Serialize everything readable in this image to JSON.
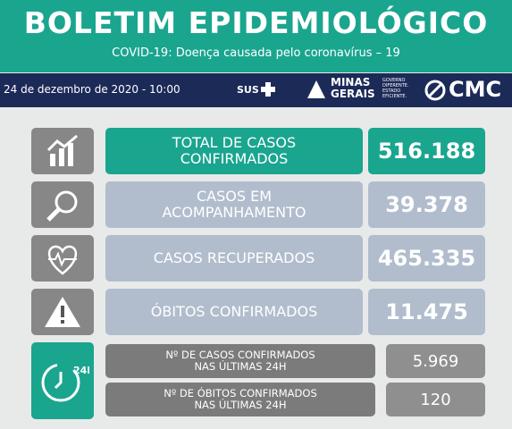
{
  "header": {
    "title": "BOLETIM EPIDEMIOLÓGICO",
    "subtitle": "COVID-19: Doença causada pelo coronavírus – 19"
  },
  "bar": {
    "date": "24 de dezembro de 2020 - 10:00",
    "logos": {
      "sus": "SUS",
      "state": [
        "MINAS",
        "GERAIS"
      ],
      "slogan": [
        "GOVERNO",
        "DIFERENTE.",
        "ESTADO",
        "EFICIENTE."
      ],
      "city": "CMC"
    }
  },
  "rows": [
    {
      "label": [
        "TOTAL DE CASOS",
        "CONFIRMADOS"
      ],
      "value": "516.188"
    },
    {
      "label": [
        "CASOS EM",
        "ACOMPANHAMENTO"
      ],
      "value": "39.378"
    },
    {
      "label": [
        "CASOS RECUPERADOS"
      ],
      "value": "465.335"
    },
    {
      "label": [
        "ÓBITOS CONFIRMADOS"
      ],
      "value": "11.475"
    }
  ],
  "last24h": {
    "icon": "24h",
    "rows": [
      {
        "label": [
          "Nº DE CASOS  CONFIRMADOS",
          "NAS ÚLTIMAS 24H"
        ],
        "value": "5.969"
      },
      {
        "label": [
          "Nº DE ÓBITOS  CONFIRMADOS",
          "NAS ÚLTIMAS 24H"
        ],
        "value": "120"
      }
    ]
  }
}
